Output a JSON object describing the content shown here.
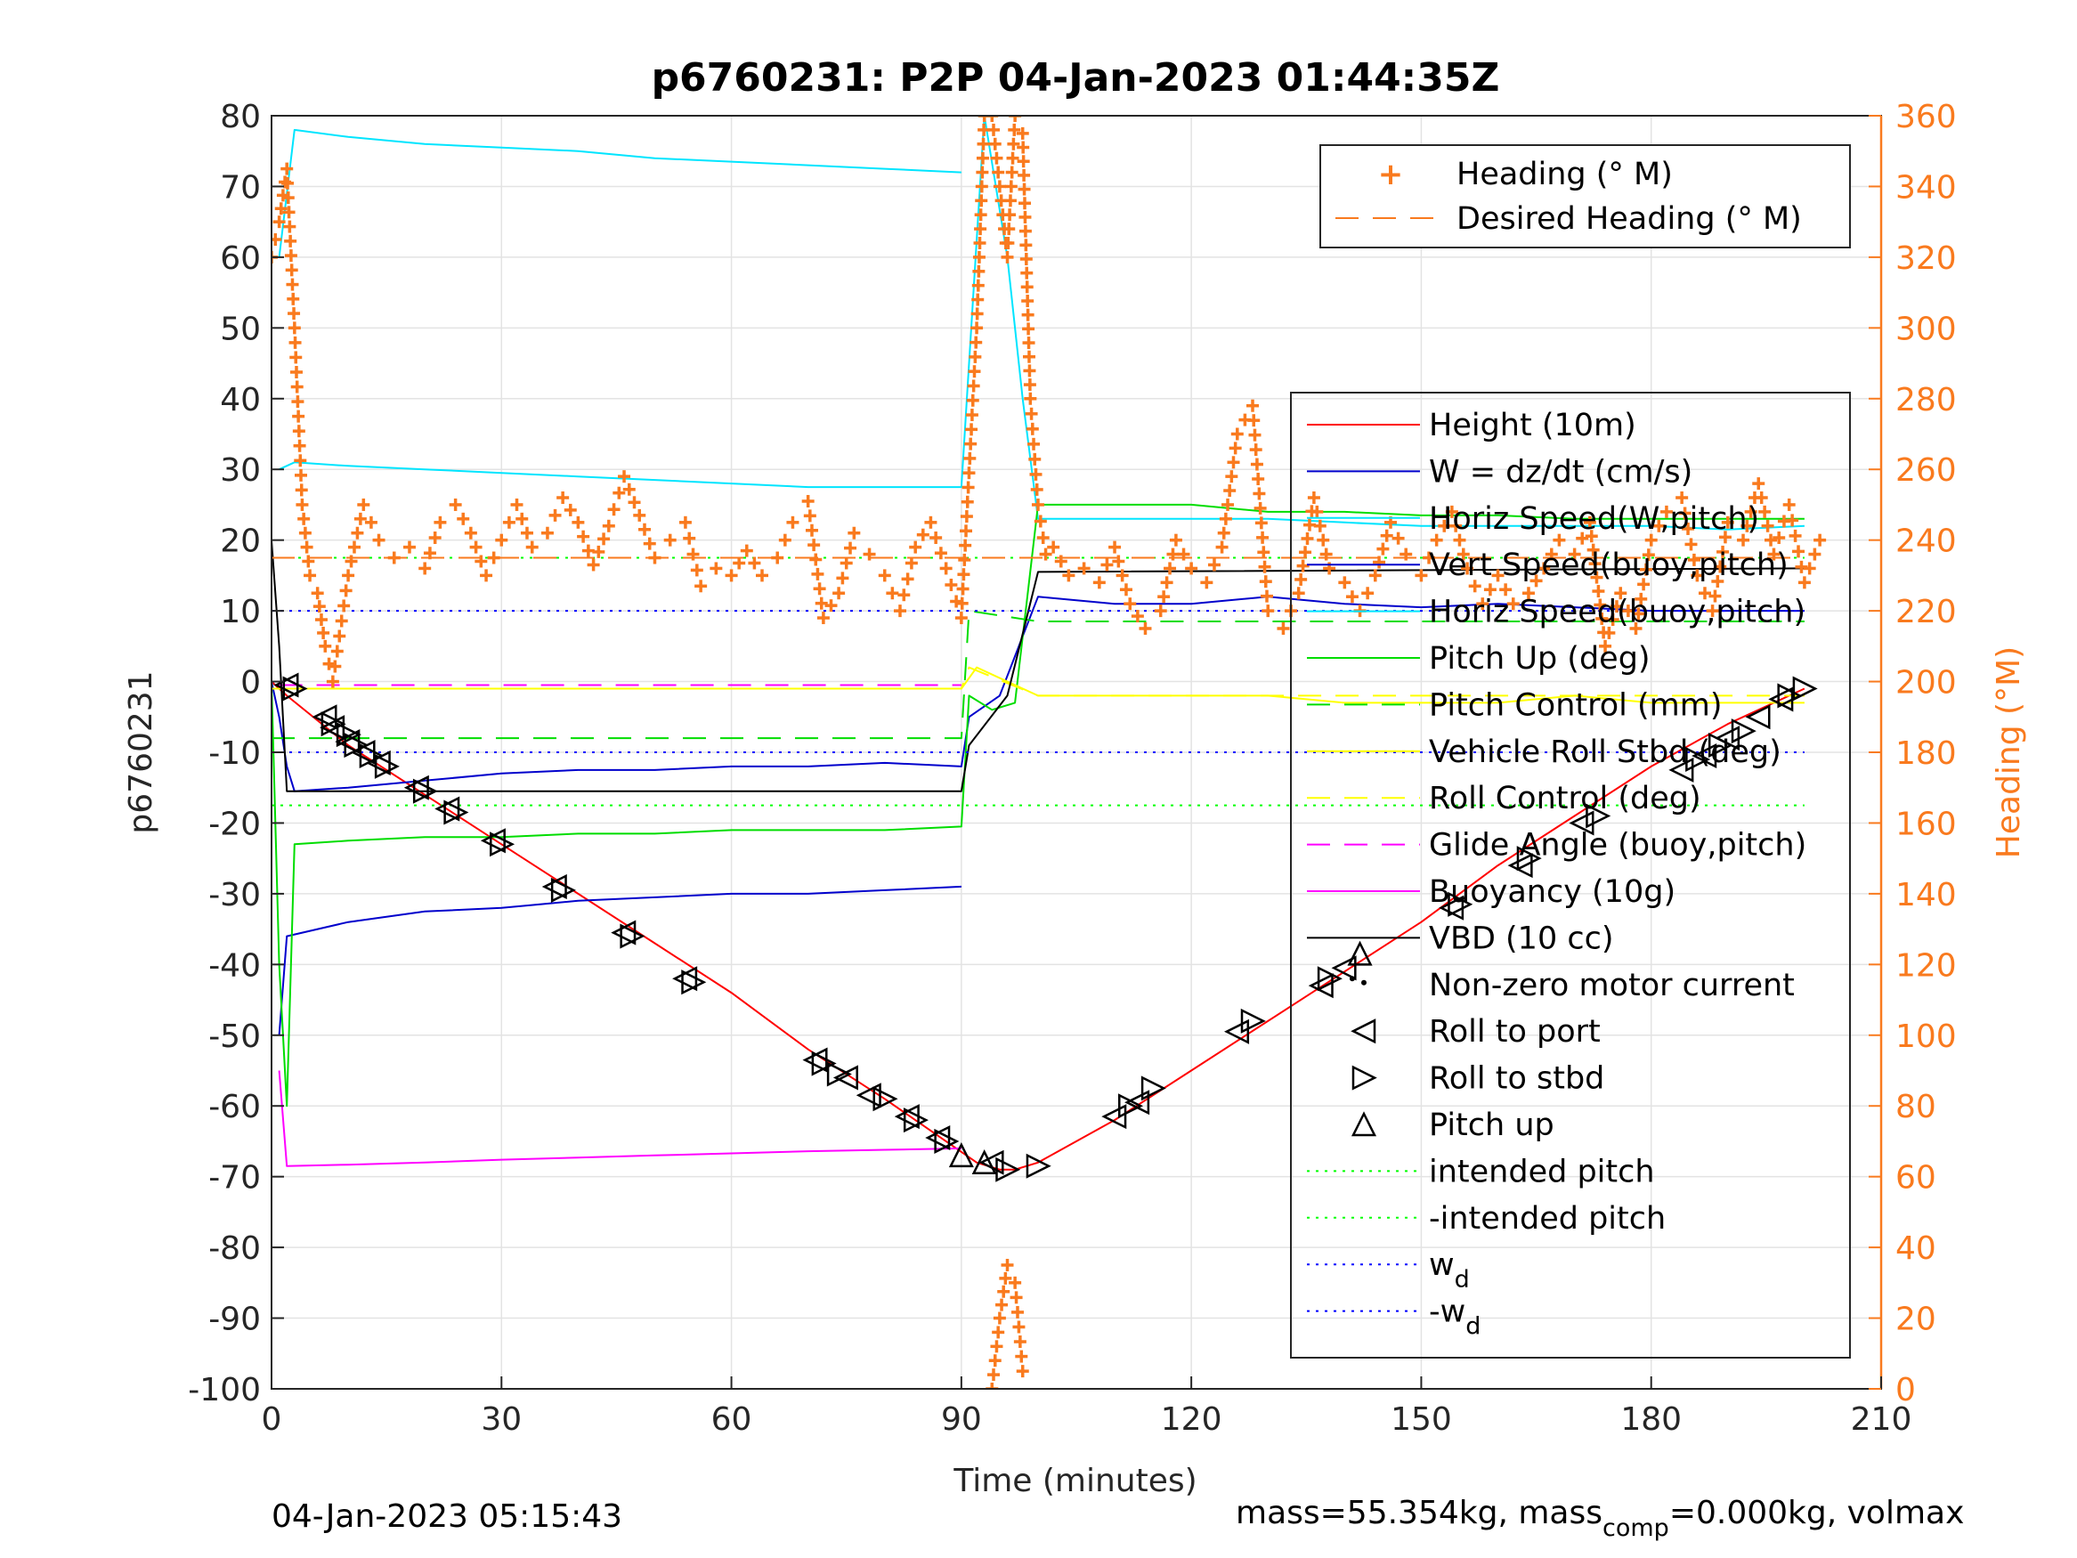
{
  "chart_data": {
    "type": "line",
    "title": "p6760231: P2P 04-Jan-2023 01:44:35Z",
    "xlabel": "Time (minutes)",
    "ylabel": "p6760231",
    "y2label": "Heading (°M)",
    "xlim": [
      0,
      210
    ],
    "ylim": [
      -100,
      80
    ],
    "y2lim": [
      0,
      360
    ],
    "xticks": [
      "0",
      "30",
      "60",
      "90",
      "120",
      "150",
      "180",
      "210"
    ],
    "yticks": [
      "80",
      "70",
      "60",
      "50",
      "40",
      "30",
      "20",
      "10",
      "0",
      "-10",
      "-20",
      "-30",
      "-40",
      "-50",
      "-60",
      "-70",
      "-80",
      "-90",
      "-100"
    ],
    "y2ticks": [
      "360",
      "340",
      "320",
      "300",
      "280",
      "260",
      "240",
      "220",
      "200",
      "180",
      "160",
      "140",
      "120",
      "100",
      "80",
      "60",
      "40",
      "20",
      "0"
    ],
    "grid": true,
    "footer_left": "04-Jan-2023 05:15:43",
    "footer_right": {
      "a": "mass=55.354kg, mass",
      "sub": "comp",
      "b": "=0.000kg, volmax"
    },
    "heading_legend": [
      {
        "label": "Heading (° M)",
        "color": "#f97a1e",
        "marker": "plus"
      },
      {
        "label": "Desired Heading (° M)",
        "color": "#f97a1e",
        "style": "dashed"
      }
    ],
    "legend": [
      {
        "label": "Height (10m)",
        "color": "#ff0000",
        "style": "solid"
      },
      {
        "label": "W = dz/dt (cm/s)",
        "color": "#0000cc",
        "style": "solid"
      },
      {
        "label": "Horiz Speed(W,pitch)",
        "color": "#00e5ff",
        "style": "solid"
      },
      {
        "label": "Vert Speed(buoy,pitch)",
        "color": "#0000cc",
        "style": "solid"
      },
      {
        "label": "Horiz Speed(buoy,pitch)",
        "color": "#00e5ff",
        "style": "solid"
      },
      {
        "label": "Pitch Up (deg)",
        "color": "#00dd00",
        "style": "solid"
      },
      {
        "label": "Pitch Control (mm)",
        "color": "#00dd00",
        "style": "dashed"
      },
      {
        "label": "Vehicle Roll Stbd (deg)",
        "color": "#ffff00",
        "style": "solid"
      },
      {
        "label": "Roll Control (deg)",
        "color": "#ffff00",
        "style": "dashed"
      },
      {
        "label": "Glide Angle (buoy,pitch)",
        "color": "#ff00ff",
        "style": "dashed"
      },
      {
        "label": "Buoyancy (10g)",
        "color": "#ff00ff",
        "style": "solid"
      },
      {
        "label": "VBD (10 cc)",
        "color": "#000000",
        "style": "solid"
      },
      {
        "label": "Non-zero motor current",
        "color": "#000000",
        "marker": "dot"
      },
      {
        "label": "Roll to port",
        "color": "#000000",
        "marker": "tri-left"
      },
      {
        "label": "Roll to stbd",
        "color": "#000000",
        "marker": "tri-right"
      },
      {
        "label": "Pitch up",
        "color": "#000000",
        "marker": "tri-up"
      },
      {
        "label": "intended pitch",
        "color": "#00ff00",
        "style": "dotted"
      },
      {
        "label": "-intended pitch",
        "color": "#00ff00",
        "style": "dotted"
      },
      {
        "label": "w",
        "sub": "d",
        "color": "#0000ff",
        "style": "dotted"
      },
      {
        "label": "-w",
        "sub": "d",
        "color": "#0000ff",
        "style": "dotted"
      }
    ],
    "series": [
      {
        "name": "Height (10m)",
        "color": "#ff0000",
        "x": [
          0,
          2,
          10,
          20,
          30,
          40,
          50,
          60,
          70,
          80,
          88,
          92,
          95,
          97,
          100,
          110,
          120,
          130,
          140,
          150,
          160,
          170,
          180,
          190,
          200
        ],
        "y": [
          0,
          -2,
          -9,
          -16,
          -23,
          -30,
          -37,
          -44,
          -52,
          -59,
          -65,
          -68,
          -69,
          -69,
          -68,
          -62,
          -55,
          -48,
          -41,
          -34,
          -26,
          -19,
          -12,
          -6,
          -1
        ]
      },
      {
        "name": "W = dz/dt (cm/s)",
        "color": "#0000cc",
        "x": [
          0,
          1,
          2,
          3,
          10,
          20,
          30,
          40,
          50,
          60,
          70,
          80,
          90,
          91,
          95,
          100,
          110,
          120,
          130,
          140,
          150,
          160,
          170,
          180,
          190,
          200
        ],
        "y": [
          0,
          -5,
          -12,
          -15.5,
          -15,
          -14,
          -13,
          -12.5,
          -12.5,
          -12,
          -12,
          -11.5,
          -12,
          -5,
          -2,
          12,
          11,
          11,
          12,
          11,
          10.5,
          11,
          10.5,
          10,
          10,
          10
        ]
      },
      {
        "name": "Horiz Speed(W,pitch)",
        "color": "#00e5ff",
        "x": [
          1,
          3,
          10,
          20,
          30,
          40,
          50,
          60,
          70,
          80,
          90,
          91,
          93,
          96,
          98,
          100,
          110,
          120,
          130,
          140,
          150,
          160,
          170,
          180,
          190,
          200
        ],
        "y": [
          30,
          31,
          30.5,
          30,
          29.5,
          29,
          28.5,
          28,
          27.5,
          27.5,
          27.5,
          45,
          80,
          60,
          40,
          23,
          23,
          23,
          23,
          22.5,
          22,
          22,
          22,
          22,
          21.5,
          22
        ]
      },
      {
        "name": "Vert Speed(buoy,pitch)",
        "color": "#0000cc",
        "x": [
          1,
          2,
          10,
          20,
          30,
          40,
          50,
          60,
          70,
          80,
          90
        ],
        "y": [
          -50,
          -36,
          -34,
          -32.5,
          -32,
          -31,
          -30.5,
          -30,
          -30,
          -29.5,
          -29
        ]
      },
      {
        "name": "Horiz Speed(buoy,pitch)",
        "color": "#00e5ff",
        "x": [
          1,
          3,
          10,
          20,
          30,
          40,
          50,
          60,
          70,
          80,
          90
        ],
        "y": [
          60,
          78,
          77,
          76,
          75.5,
          75,
          74,
          73.5,
          73,
          72.5,
          72
        ]
      },
      {
        "name": "Pitch Up (deg)",
        "color": "#00dd00",
        "x": [
          0,
          1,
          2,
          3,
          10,
          20,
          30,
          40,
          50,
          60,
          70,
          80,
          90,
          91,
          94,
          97,
          100,
          110,
          120,
          130,
          140,
          150,
          160,
          170,
          180,
          190,
          200
        ],
        "y": [
          0,
          -40,
          -60,
          -23,
          -22.5,
          -22,
          -22,
          -21.5,
          -21.5,
          -21,
          -21,
          -21,
          -20.5,
          -2,
          -4,
          -3,
          25,
          25,
          25,
          24,
          24,
          23.5,
          23.5,
          23,
          23,
          23,
          23
        ]
      },
      {
        "name": "Pitch Control (mm)",
        "color": "#00dd00",
        "style": "dashed",
        "x": [
          0,
          2,
          90,
          91,
          100,
          200
        ],
        "y": [
          -8,
          -8,
          -8,
          10,
          8.5,
          8.5
        ]
      },
      {
        "name": "Vehicle Roll Stbd (deg)",
        "color": "#ffff00",
        "x": [
          0,
          10,
          20,
          30,
          40,
          50,
          60,
          70,
          80,
          90,
          92,
          100,
          110,
          120,
          130,
          140,
          150,
          160,
          170,
          180,
          190,
          200
        ],
        "y": [
          -1,
          -1,
          -1,
          -1,
          -1,
          -1,
          -1,
          -1,
          -1,
          -1,
          2,
          -2,
          -2,
          -2,
          -2,
          -3,
          -3,
          -3,
          -2,
          -3,
          -3,
          -3
        ]
      },
      {
        "name": "Roll Control (deg)",
        "color": "#ffff00",
        "style": "dashed",
        "x": [
          0,
          2,
          90,
          91,
          100,
          200
        ],
        "y": [
          -1,
          -1,
          -1,
          2,
          -2,
          -2
        ]
      },
      {
        "name": "Glide Angle (buoy,pitch)",
        "color": "#ff00ff",
        "style": "dashed",
        "x": [
          1,
          90
        ],
        "y": [
          -0.5,
          -0.5
        ]
      },
      {
        "name": "Buoyancy (10g)",
        "color": "#ff00ff",
        "x": [
          1,
          2,
          10,
          20,
          30,
          40,
          50,
          60,
          70,
          80,
          90
        ],
        "y": [
          -55,
          -68.5,
          -68.3,
          -68,
          -67.6,
          -67.3,
          -67,
          -66.7,
          -66.4,
          -66.2,
          -66
        ]
      },
      {
        "name": "VBD (10 cc)",
        "color": "#000000",
        "x": [
          0,
          1,
          2,
          90,
          91,
          96,
          100,
          200
        ],
        "y": [
          20,
          5,
          -15.5,
          -15.5,
          -9,
          -2,
          15.5,
          16
        ]
      },
      {
        "name": "intended pitch",
        "color": "#00ff00",
        "style": "dotted",
        "x": [
          0,
          200
        ],
        "y": [
          17.5,
          17.5
        ]
      },
      {
        "name": "-intended pitch",
        "color": "#00ff00",
        "style": "dotted",
        "x": [
          0,
          200
        ],
        "y": [
          -17.5,
          -17.5
        ]
      },
      {
        "name": "w",
        "color": "#0000ff",
        "style": "dotted",
        "x": [
          0,
          200
        ],
        "y": [
          10,
          10
        ]
      },
      {
        "name": "-w",
        "color": "#0000ff",
        "style": "dotted",
        "x": [
          0,
          200
        ],
        "y": [
          -10,
          -10
        ]
      }
    ],
    "heading": {
      "name": "Heading (° M)",
      "color": "#f97a1e",
      "x": [
        0,
        1,
        2,
        3,
        4,
        5,
        6,
        7,
        8,
        10,
        12,
        14,
        16,
        18,
        20,
        22,
        24,
        26,
        28,
        30,
        32,
        34,
        36,
        38,
        40,
        42,
        44,
        46,
        48,
        50,
        52,
        54,
        56,
        58,
        60,
        62,
        64,
        66,
        68,
        70,
        72,
        74,
        76,
        78,
        80,
        82,
        84,
        86,
        88,
        90,
        92,
        93,
        94,
        95,
        96,
        97,
        98,
        99,
        100,
        101,
        102,
        104,
        106,
        108,
        110,
        112,
        114,
        116,
        118,
        120,
        122,
        124,
        126,
        128,
        130,
        132,
        134,
        136,
        138,
        140,
        142,
        144,
        146,
        148,
        150,
        152,
        154,
        156,
        158,
        160,
        162,
        164,
        166,
        168,
        170,
        172,
        174,
        176,
        178,
        180,
        182,
        184,
        186,
        188,
        190,
        192,
        194,
        196,
        198,
        200,
        202
      ],
      "y": [
        320,
        330,
        345,
        300,
        250,
        230,
        225,
        210,
        200,
        230,
        250,
        240,
        235,
        238,
        232,
        245,
        250,
        242,
        230,
        240,
        250,
        238,
        242,
        252,
        245,
        233,
        244,
        258,
        247,
        235,
        240,
        245,
        227,
        232,
        230,
        237,
        230,
        235,
        245,
        251,
        218,
        225,
        242,
        236,
        230,
        220,
        238,
        245,
        232,
        218,
        300,
        360,
        360,
        340,
        320,
        360,
        355,
        280,
        250,
        236,
        238,
        230,
        232,
        228,
        238,
        222,
        215,
        220,
        240,
        232,
        228,
        238,
        270,
        278,
        220,
        215,
        225,
        252,
        232,
        228,
        220,
        230,
        245,
        236,
        230,
        240,
        248,
        232,
        222,
        230,
        222,
        225,
        232,
        240,
        236,
        245,
        210,
        225,
        215,
        240,
        248,
        252,
        230,
        220,
        245,
        240,
        256,
        236,
        250,
        228,
        240
      ]
    },
    "heading_low_branch": {
      "x": [
        94,
        95,
        96,
        97,
        98
      ],
      "y": [
        0,
        20,
        35,
        30,
        5
      ]
    },
    "desired_heading": {
      "x": [
        0,
        200
      ],
      "y": [
        235,
        235
      ]
    },
    "markers": {
      "roll_port": {
        "x": [
          2,
          7,
          8,
          10,
          12,
          14,
          19,
          23,
          29,
          37,
          46,
          54,
          71,
          75,
          78,
          83,
          87,
          94,
          110,
          113,
          126,
          137,
          140,
          154,
          163,
          171,
          184,
          187,
          190,
          194,
          197
        ],
        "y": [
          -0.5,
          -5,
          -6.5,
          -8.5,
          -10,
          -11.5,
          -15,
          -18,
          -22.5,
          -29,
          -35.5,
          -42,
          -53.5,
          -56,
          -58.5,
          -61.5,
          -64.5,
          -68,
          -61.5,
          -59.5,
          -49.5,
          -43,
          -40.5,
          -32,
          -26,
          -20,
          -12.5,
          -10.5,
          -8,
          -5,
          -2.5
        ]
      },
      "roll_stbd": {
        "x": [
          3,
          8,
          10,
          11,
          13,
          15,
          20,
          24,
          30,
          38,
          47,
          55,
          72,
          74,
          80,
          84,
          88,
          96,
          100,
          112,
          115,
          128,
          138,
          155,
          164,
          173,
          186,
          189,
          192,
          198,
          200
        ],
        "y": [
          -1,
          -6,
          -7.5,
          -9,
          -10.5,
          -12,
          -15.5,
          -18.5,
          -23,
          -29.5,
          -36,
          -42.5,
          -54,
          -55.5,
          -59,
          -62,
          -65,
          -69,
          -68.5,
          -60,
          -57.5,
          -48,
          -42,
          -31.5,
          -25,
          -19,
          -11,
          -9,
          -7,
          -2,
          -1
        ]
      },
      "pitch_up": {
        "x": [
          90,
          93,
          142
        ],
        "y": [
          -67,
          -68,
          -38.5
        ]
      },
      "motor": {
        "x": [
          141
        ],
        "y": [
          -42
        ]
      }
    }
  }
}
